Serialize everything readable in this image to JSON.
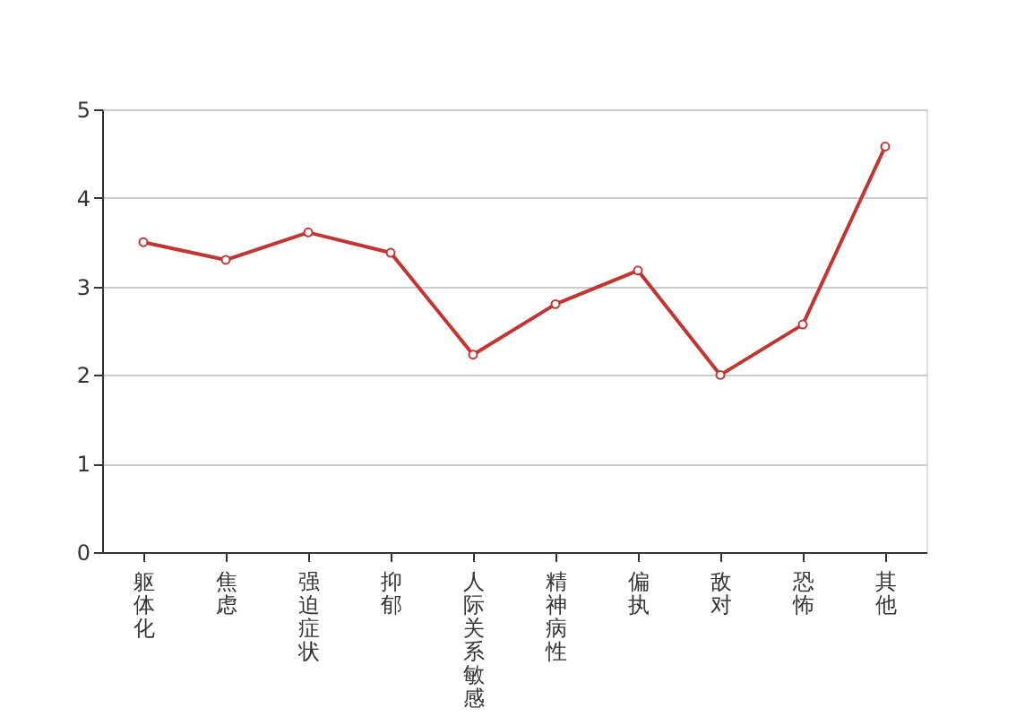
{
  "chart_data": {
    "type": "line",
    "categories": [
      "躯体化",
      "焦虑",
      "强迫症状",
      "抑郁",
      "人际关系敏感",
      "精神病性",
      "偏执",
      "敌对",
      "恐怖",
      "其他"
    ],
    "series": [
      {
        "color": "#c23531",
        "values": [
          3.5,
          3.3,
          3.61,
          3.38,
          2.23,
          2.8,
          3.18,
          2.0,
          2.57,
          4.58
        ]
      }
    ],
    "ylim": [
      0,
      5
    ],
    "yticks": [
      0,
      1,
      2,
      3,
      4,
      5
    ],
    "grid": "y",
    "marker": "circle"
  }
}
